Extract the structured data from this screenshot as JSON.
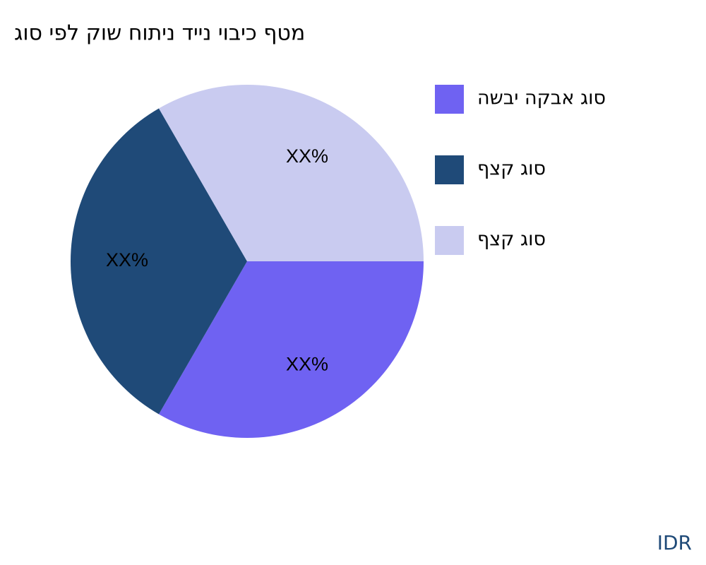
{
  "chart_data": {
    "type": "pie",
    "title": "גוס יפל קוש חותינ דיינ יוביכ ףטמ",
    "categories": [
      "השבי הקבא גוס",
      "ףצק גוס",
      "ףצק גוס"
    ],
    "values": [
      33.3,
      33.3,
      33.3
    ],
    "value_labels": [
      "XX%",
      "XX%",
      "XX%"
    ],
    "colors": [
      "#6f62f2",
      "#1f4a78",
      "#c9cbf0"
    ],
    "legend": "right"
  },
  "footer": {
    "brand": "IDR"
  }
}
